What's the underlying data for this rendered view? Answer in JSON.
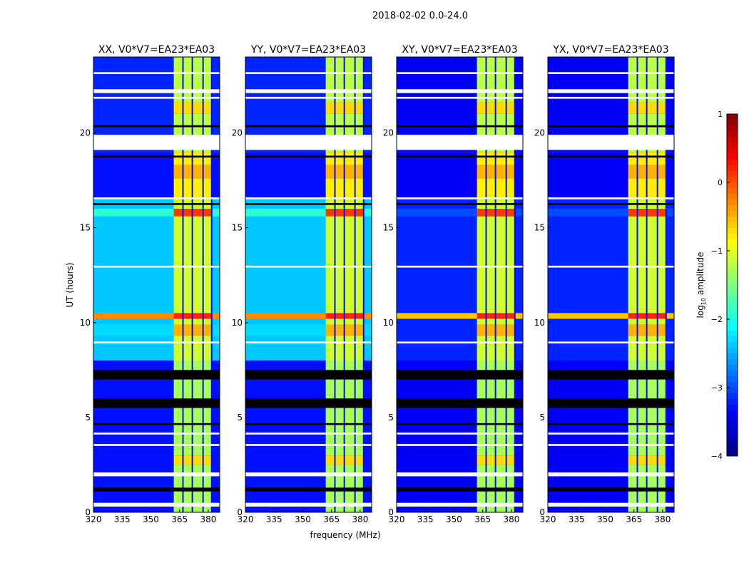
{
  "chart_data": {
    "type": "heatmap",
    "title": "2018-02-02 0.0-24.0",
    "xlabel": "frequency (MHz)",
    "ylabel": "UT (hours)",
    "xlim": [
      320,
      386
    ],
    "ylim": [
      0,
      24
    ],
    "xticks": [
      "320",
      "335",
      "350",
      "365",
      "380"
    ],
    "yticks": [
      "0",
      "5",
      "10",
      "15",
      "20"
    ],
    "panels": [
      {
        "title": "XX, V0*V7=EA23*EA03",
        "type": "parallel"
      },
      {
        "title": "YY, V0*V7=EA23*EA03",
        "type": "parallel"
      },
      {
        "title": "XY, V0*V7=EA23*EA03",
        "type": "cross"
      },
      {
        "title": "YX, V0*V7=EA23*EA03",
        "type": "cross"
      }
    ],
    "rfi_band_mhz": [
      362,
      382
    ],
    "rfi_gaps_mhz": [
      366.8,
      371.7,
      377.3,
      381.8
    ],
    "segments": [
      {
        "t": [
          0,
          8
        ],
        "parallel": -3.3,
        "cross": -3.4,
        "band": -1.3
      },
      {
        "t": [
          8,
          16.5
        ],
        "parallel": -2.4,
        "cross": -3.2,
        "band": -1.1
      },
      {
        "t": [
          16.5,
          19
        ],
        "parallel": -3.3,
        "cross": -3.4,
        "band": -0.8
      },
      {
        "t": [
          19,
          24
        ],
        "parallel": -3.2,
        "cross": -3.4,
        "band": -1.2
      },
      {
        "t": [
          2.5,
          3.0
        ],
        "parallel": -3.3,
        "cross": -3.4,
        "band": -0.7
      },
      {
        "t": [
          9.3,
          9.9
        ],
        "parallel": -2.3,
        "cross": -3.2,
        "band": -0.5
      },
      {
        "t": [
          10.2,
          10.5
        ],
        "parallel": -0.3,
        "cross": -0.6,
        "band": 0.2
      },
      {
        "t": [
          15.6,
          16.0
        ],
        "parallel": -1.9,
        "cross": -3.0,
        "band": 0.1
      },
      {
        "t": [
          17.6,
          18.3
        ],
        "parallel": -3.3,
        "cross": -3.4,
        "band": -0.5
      },
      {
        "t": [
          21.0,
          21.6
        ],
        "parallel": -3.2,
        "cross": -3.4,
        "band": -0.7
      }
    ],
    "flagged_hours": [
      [
        0.3,
        0.5
      ],
      [
        1.9,
        2.1
      ],
      [
        3.5,
        3.6
      ],
      [
        4.1,
        4.2
      ],
      [
        8.9,
        9.0
      ],
      [
        12.9,
        13.0
      ],
      [
        16.5,
        16.6
      ],
      [
        19.1,
        19.9
      ],
      [
        21.8,
        21.9
      ],
      [
        22.1,
        22.3
      ],
      [
        23.1,
        23.2
      ]
    ],
    "zero_hours": [
      [
        1.1,
        1.3
      ],
      [
        4.6,
        4.7
      ],
      [
        5.5,
        6.0
      ],
      [
        7.0,
        7.5
      ],
      [
        16.2,
        16.3
      ],
      [
        18.7,
        18.8
      ],
      [
        20.3,
        20.4
      ]
    ],
    "colorbar": {
      "label": "log10 amplitude",
      "label_main": "log",
      "label_sub": "10",
      "label_rest": " amplitude",
      "range": [
        -4,
        1
      ],
      "ticks": [
        "1",
        "0",
        "−1",
        "−2",
        "−3",
        "−4"
      ],
      "colormap": "jet"
    }
  }
}
